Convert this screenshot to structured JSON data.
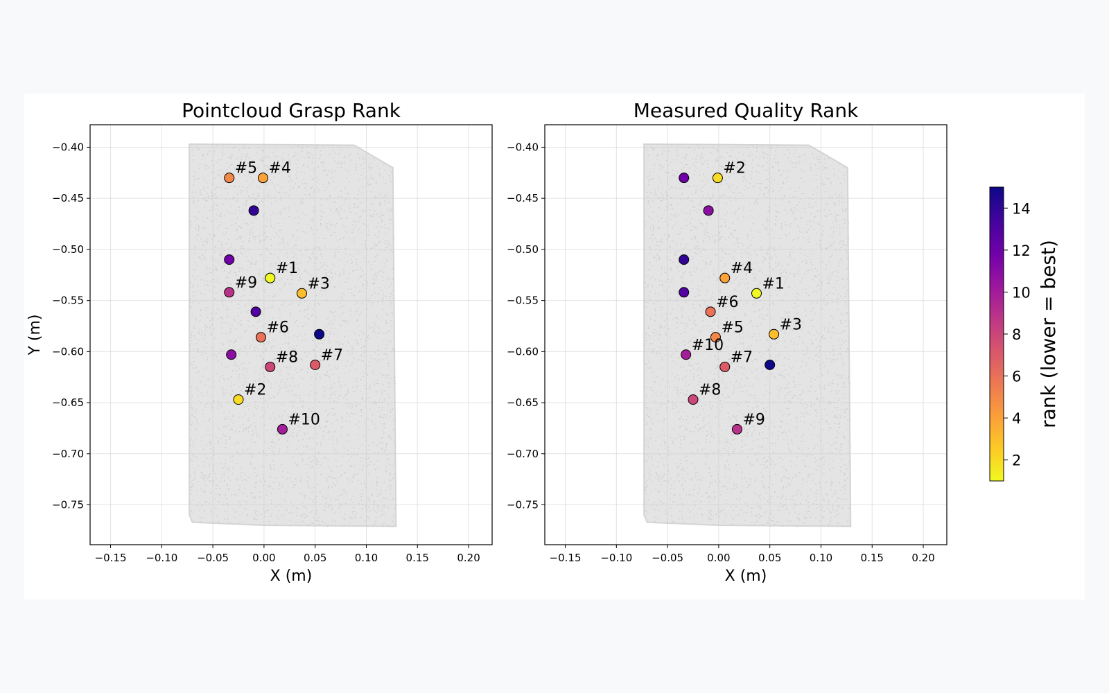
{
  "chart_data": [
    {
      "type": "scatter",
      "title": "Pointcloud Grasp Rank",
      "xlabel": "X (m)",
      "ylabel": "Y (m)",
      "xlim": [
        -0.17,
        0.223
      ],
      "ylim": [
        -0.789,
        -0.378
      ],
      "xticks": [
        "-0.15",
        "-0.10",
        "-0.05",
        "0.00",
        "0.05",
        "0.10",
        "0.15",
        "0.20"
      ],
      "yticks": [
        "-0.40",
        "-0.45",
        "-0.50",
        "-0.55",
        "-0.60",
        "-0.65",
        "-0.70",
        "-0.75"
      ],
      "xtick_values": [
        -0.15,
        -0.1,
        -0.05,
        0.0,
        0.05,
        0.1,
        0.15,
        0.2
      ],
      "ytick_values": [
        -0.4,
        -0.45,
        -0.5,
        -0.55,
        -0.6,
        -0.65,
        -0.7,
        -0.75
      ],
      "grid": true,
      "background": "gray point cloud of object",
      "points": [
        {
          "x": -0.034,
          "y": -0.43,
          "rank": 5,
          "label": "#5"
        },
        {
          "x": -0.001,
          "y": -0.43,
          "rank": 4,
          "label": "#4"
        },
        {
          "x": -0.01,
          "y": -0.462,
          "rank": 14,
          "label": ""
        },
        {
          "x": -0.034,
          "y": -0.51,
          "rank": 12,
          "label": ""
        },
        {
          "x": 0.006,
          "y": -0.528,
          "rank": 1,
          "label": "#1"
        },
        {
          "x": -0.034,
          "y": -0.542,
          "rank": 9,
          "label": "#9"
        },
        {
          "x": 0.037,
          "y": -0.543,
          "rank": 3,
          "label": "#3"
        },
        {
          "x": -0.008,
          "y": -0.561,
          "rank": 13,
          "label": ""
        },
        {
          "x": -0.003,
          "y": -0.586,
          "rank": 6,
          "label": "#6"
        },
        {
          "x": 0.054,
          "y": -0.583,
          "rank": 15,
          "label": ""
        },
        {
          "x": -0.032,
          "y": -0.603,
          "rank": 11,
          "label": ""
        },
        {
          "x": 0.006,
          "y": -0.615,
          "rank": 8,
          "label": "#8"
        },
        {
          "x": 0.05,
          "y": -0.613,
          "rank": 7,
          "label": "#7"
        },
        {
          "x": -0.025,
          "y": -0.647,
          "rank": 2,
          "label": "#2"
        },
        {
          "x": 0.018,
          "y": -0.676,
          "rank": 10,
          "label": "#10"
        }
      ]
    },
    {
      "type": "scatter",
      "title": "Measured Quality Rank",
      "xlabel": "X (m)",
      "ylabel": "",
      "xlim": [
        -0.17,
        0.223
      ],
      "ylim": [
        -0.789,
        -0.378
      ],
      "xticks": [
        "-0.15",
        "-0.10",
        "-0.05",
        "0.00",
        "0.05",
        "0.10",
        "0.15",
        "0.20"
      ],
      "yticks": [
        "-0.40",
        "-0.45",
        "-0.50",
        "-0.55",
        "-0.60",
        "-0.65",
        "-0.70",
        "-0.75"
      ],
      "xtick_values": [
        -0.15,
        -0.1,
        -0.05,
        0.0,
        0.05,
        0.1,
        0.15,
        0.2
      ],
      "ytick_values": [
        -0.4,
        -0.45,
        -0.5,
        -0.55,
        -0.6,
        -0.65,
        -0.7,
        -0.75
      ],
      "grid": true,
      "background": "gray point cloud of object",
      "points": [
        {
          "x": -0.034,
          "y": -0.43,
          "rank": 12,
          "label": ""
        },
        {
          "x": -0.001,
          "y": -0.43,
          "rank": 2,
          "label": "#2"
        },
        {
          "x": -0.01,
          "y": -0.462,
          "rank": 11,
          "label": ""
        },
        {
          "x": -0.034,
          "y": -0.51,
          "rank": 14,
          "label": ""
        },
        {
          "x": 0.006,
          "y": -0.528,
          "rank": 4,
          "label": "#4"
        },
        {
          "x": -0.034,
          "y": -0.542,
          "rank": 13,
          "label": ""
        },
        {
          "x": 0.037,
          "y": -0.543,
          "rank": 1,
          "label": "#1"
        },
        {
          "x": -0.008,
          "y": -0.561,
          "rank": 6,
          "label": "#6"
        },
        {
          "x": -0.003,
          "y": -0.586,
          "rank": 5,
          "label": "#5"
        },
        {
          "x": 0.054,
          "y": -0.583,
          "rank": 3,
          "label": "#3"
        },
        {
          "x": -0.032,
          "y": -0.603,
          "rank": 10,
          "label": "#10"
        },
        {
          "x": 0.006,
          "y": -0.615,
          "rank": 7,
          "label": "#7"
        },
        {
          "x": 0.05,
          "y": -0.613,
          "rank": 15,
          "label": ""
        },
        {
          "x": -0.025,
          "y": -0.647,
          "rank": 8,
          "label": "#8"
        },
        {
          "x": 0.018,
          "y": -0.676,
          "rank": 9,
          "label": "#9"
        }
      ]
    }
  ],
  "colorbar": {
    "label": "rank (lower = best)",
    "colormap": "plasma_r",
    "range": [
      1,
      15
    ],
    "ticks": [
      "2",
      "4",
      "6",
      "8",
      "10",
      "12",
      "14"
    ],
    "tick_values": [
      2,
      4,
      6,
      8,
      10,
      12,
      14
    ],
    "colors": [
      "#f0f921",
      "#fdca26",
      "#fb9f3a",
      "#ed7953",
      "#d8576b",
      "#bd3786",
      "#9c179e",
      "#7201a8",
      "#46039f",
      "#0d0887"
    ]
  }
}
